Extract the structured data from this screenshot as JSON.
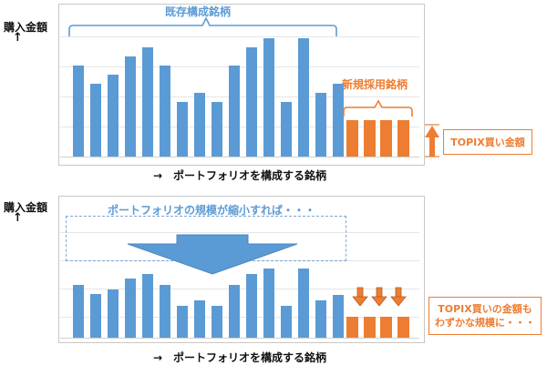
{
  "top_panel": {
    "ylabel": "購入金額",
    "up_arrow": "↑",
    "existing_label": "既存構成銘柄",
    "new_label": "新規採用銘柄",
    "callout": "TOPIX買い金額",
    "xlabel": "→　ポートフォリオを構成する銘柄"
  },
  "bottom_panel": {
    "ylabel": "購入金額",
    "up_arrow": "↑",
    "shrink_label": "ポートフォリオの規模が縮小すれば・・・",
    "callout_line1": "TOPIX買いの金額も",
    "callout_line2": "わずかな規模に・・・",
    "xlabel": "→　ポートフォリオを構成する銘柄"
  },
  "colors": {
    "blue": "#5b9bd5",
    "orange": "#ed7d31"
  },
  "chart_data": [
    {
      "type": "bar",
      "series": [
        {
          "name": "既存構成銘柄",
          "values": [
            5,
            4,
            4.5,
            5.5,
            6,
            5,
            3,
            3.5,
            3,
            5,
            6,
            6.5,
            3,
            6.5,
            3.5,
            4
          ]
        },
        {
          "name": "新規採用銘柄",
          "values": [
            2,
            2,
            2,
            2
          ]
        }
      ]
    },
    {
      "type": "bar",
      "series": [
        {
          "name": "既存構成銘柄",
          "values": [
            2.9,
            2.4,
            2.65,
            3.25,
            3.5,
            2.9,
            1.75,
            2.05,
            1.75,
            2.9,
            3.5,
            3.8,
            1.75,
            3.8,
            2.05,
            2.35
          ]
        },
        {
          "name": "新規採用銘柄",
          "values": [
            1.17,
            1.17,
            1.17,
            1.17
          ]
        }
      ]
    }
  ]
}
